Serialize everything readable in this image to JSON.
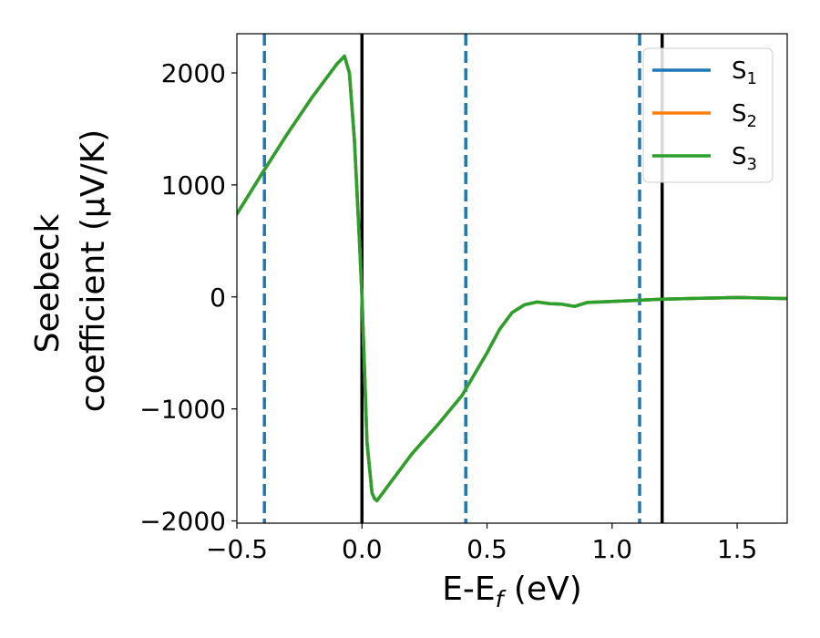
{
  "chart_data": {
    "type": "line",
    "xlabel": "E-E",
    "xlabel_sub": "f",
    "xlabel_unit": " (eV)",
    "ylabel_line1": "Seebeck",
    "ylabel_line2": "coefficient  (μV/K)",
    "xlim": [
      -0.5,
      1.7
    ],
    "ylim": [
      -2020,
      2350
    ],
    "xticks": [
      -0.5,
      0.0,
      0.5,
      1.0,
      1.5
    ],
    "xtick_labels": [
      "−0.5",
      "0.0",
      "0.5",
      "1.0",
      "1.5"
    ],
    "yticks": [
      -2000,
      -1000,
      0,
      1000,
      2000
    ],
    "ytick_labels": [
      "−2000",
      "−1000",
      "0",
      "1000",
      "2000"
    ],
    "grid": false,
    "legend_position": "top-right",
    "vlines": [
      {
        "x": -0.39,
        "style": "dashed",
        "color": "#1f77b4"
      },
      {
        "x": 0.0,
        "style": "solid",
        "color": "#000000"
      },
      {
        "x": 0.415,
        "style": "dashed",
        "color": "#1f77b4"
      },
      {
        "x": 1.11,
        "style": "dashed",
        "color": "#1f77b4"
      },
      {
        "x": 1.2,
        "style": "solid",
        "color": "#000000"
      }
    ],
    "series": [
      {
        "name": "S",
        "sub": "1",
        "color": "#1f77b4",
        "x": [
          -0.5,
          -0.4,
          -0.3,
          -0.2,
          -0.1,
          -0.07,
          -0.05,
          -0.03,
          -0.01,
          0.0,
          0.02,
          0.04,
          0.05,
          0.06,
          0.1,
          0.2,
          0.3,
          0.4,
          0.5,
          0.55,
          0.6,
          0.65,
          0.7,
          0.75,
          0.8,
          0.85,
          0.9,
          1.0,
          1.1,
          1.2,
          1.3,
          1.4,
          1.5,
          1.6,
          1.7
        ],
        "y": [
          740,
          1100,
          1450,
          1780,
          2080,
          2150,
          2000,
          1400,
          500,
          0,
          -1300,
          -1750,
          -1800,
          -1820,
          -1700,
          -1400,
          -1150,
          -880,
          -500,
          -290,
          -140,
          -70,
          -45,
          -60,
          -65,
          -85,
          -50,
          -40,
          -30,
          -20,
          -15,
          -10,
          -5,
          -10,
          -15
        ]
      },
      {
        "name": "S",
        "sub": "2",
        "color": "#ff7f0e",
        "x": [
          -0.5,
          -0.4,
          -0.3,
          -0.2,
          -0.1,
          -0.07,
          -0.05,
          -0.03,
          -0.01,
          0.0,
          0.02,
          0.04,
          0.05,
          0.06,
          0.1,
          0.2,
          0.3,
          0.4,
          0.5,
          0.55,
          0.6,
          0.65,
          0.7,
          0.75,
          0.8,
          0.85,
          0.9,
          1.0,
          1.1,
          1.2,
          1.3,
          1.4,
          1.5,
          1.6,
          1.7
        ],
        "y": [
          740,
          1100,
          1450,
          1780,
          2080,
          2150,
          2000,
          1400,
          500,
          0,
          -1300,
          -1750,
          -1800,
          -1820,
          -1700,
          -1400,
          -1150,
          -880,
          -500,
          -290,
          -140,
          -70,
          -45,
          -60,
          -65,
          -85,
          -50,
          -40,
          -30,
          -20,
          -15,
          -10,
          -5,
          -10,
          -15
        ]
      },
      {
        "name": "S",
        "sub": "3",
        "color": "#2ca02c",
        "x": [
          -0.5,
          -0.4,
          -0.3,
          -0.2,
          -0.1,
          -0.07,
          -0.05,
          -0.03,
          -0.01,
          0.0,
          0.02,
          0.04,
          0.05,
          0.06,
          0.1,
          0.2,
          0.3,
          0.4,
          0.5,
          0.55,
          0.6,
          0.65,
          0.7,
          0.75,
          0.8,
          0.85,
          0.9,
          1.0,
          1.1,
          1.2,
          1.3,
          1.4,
          1.5,
          1.6,
          1.7
        ],
        "y": [
          740,
          1100,
          1450,
          1780,
          2080,
          2150,
          2000,
          1400,
          500,
          0,
          -1300,
          -1750,
          -1800,
          -1820,
          -1700,
          -1400,
          -1150,
          -880,
          -500,
          -290,
          -140,
          -70,
          -45,
          -60,
          -65,
          -85,
          -50,
          -40,
          -30,
          -20,
          -15,
          -10,
          -5,
          -10,
          -15
        ]
      }
    ]
  }
}
